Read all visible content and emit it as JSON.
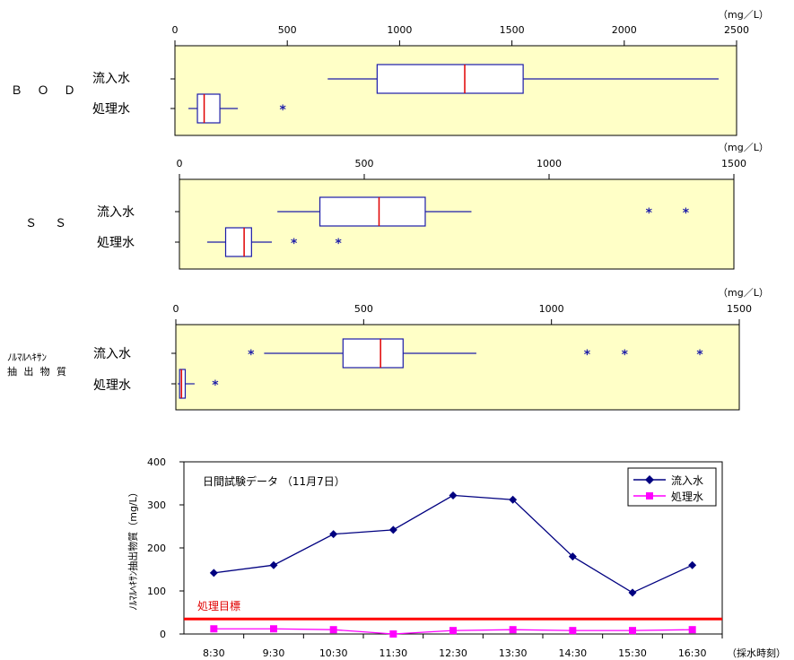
{
  "chart_data": [
    {
      "type": "box",
      "group_label": "Ｂ Ｏ Ｄ",
      "unit": "（mg／L）",
      "xlim": [
        0,
        2500
      ],
      "ticks": [
        0,
        500,
        1000,
        1500,
        2000,
        2500
      ],
      "rows": [
        {
          "name": "流入水",
          "whisker_low": 680,
          "q1": 900,
          "median": 1290,
          "q3": 1550,
          "whisker_high": 2420,
          "outliers": []
        },
        {
          "name": "処理水",
          "whisker_low": 60,
          "q1": 100,
          "median": 130,
          "q3": 200,
          "whisker_high": 280,
          "outliers": [
            480
          ]
        }
      ]
    },
    {
      "type": "box",
      "group_label": "Ｓ Ｓ",
      "unit": "（mg／L）",
      "xlim": [
        0,
        1500
      ],
      "ticks": [
        0,
        500,
        1000,
        1500
      ],
      "rows": [
        {
          "name": "流入水",
          "whisker_low": 265,
          "q1": 380,
          "median": 540,
          "q3": 665,
          "whisker_high": 790,
          "outliers": [
            1270,
            1370
          ]
        },
        {
          "name": "処理水",
          "whisker_low": 75,
          "q1": 125,
          "median": 175,
          "q3": 195,
          "whisker_high": 250,
          "outliers": [
            310,
            430
          ]
        }
      ]
    },
    {
      "type": "box",
      "group_label_lines": [
        "ﾉﾙﾏﾙﾍｷｻﾝ",
        "抽 出 物 質"
      ],
      "unit": "（mg／L）",
      "xlim": [
        0,
        1500
      ],
      "ticks": [
        0,
        500,
        1000,
        1500
      ],
      "rows": [
        {
          "name": "流入水",
          "whisker_low": 235,
          "q1": 445,
          "median": 545,
          "q3": 605,
          "whisker_high": 800,
          "outliers": [
            200,
            1095,
            1195,
            1395
          ]
        },
        {
          "name": "処理水",
          "whisker_low": 5,
          "q1": 10,
          "median": 15,
          "q3": 25,
          "whisker_high": 50,
          "outliers": [
            105
          ]
        }
      ]
    },
    {
      "type": "line",
      "title": "日間試験データ （11月7日）",
      "ylabel": "ﾉﾙﾏﾙﾍｷｻﾝ抽出物質（mg/L）",
      "xlabel": "（採水時刻）",
      "categories": [
        "8:30",
        "9:30",
        "10:30",
        "11:30",
        "12:30",
        "13:30",
        "14:30",
        "15:30",
        "16:30"
      ],
      "ylim": [
        0,
        400
      ],
      "yticks": [
        0,
        100,
        200,
        300,
        400
      ],
      "series": [
        {
          "name": "流入水",
          "color": "#000080",
          "marker": "diamond",
          "values": [
            142,
            160,
            232,
            242,
            322,
            312,
            180,
            96,
            160
          ]
        },
        {
          "name": "処理水",
          "color": "#ff00ff",
          "marker": "square",
          "values": [
            12,
            12,
            10,
            0,
            8,
            10,
            8,
            8,
            10
          ]
        }
      ],
      "target": {
        "label": "処理目標",
        "value": 35,
        "color": "#ff0000"
      },
      "legend_position": "top-right"
    }
  ]
}
